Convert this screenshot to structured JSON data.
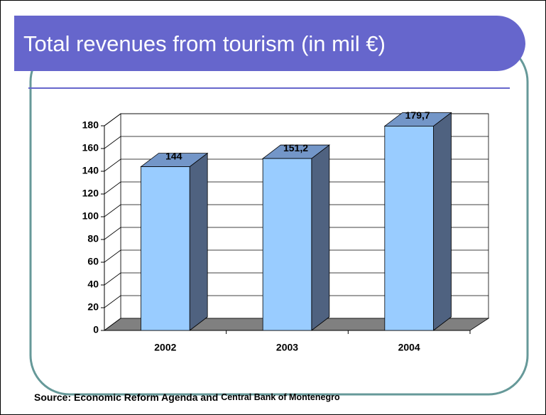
{
  "title": "Total revenues from tourism (in mil €)",
  "source": [
    "Source: Economic Reform Agenda and",
    "Central Bank of Montenegro"
  ],
  "chart_data": {
    "type": "bar3d",
    "categories": [
      "2002",
      "2003",
      "2004"
    ],
    "values": [
      144,
      151.2,
      179.7
    ],
    "value_labels": [
      "144",
      "151,2",
      "179,7"
    ],
    "color": "#99ccff",
    "ylim": [
      0,
      180
    ],
    "yticks": [
      0,
      20,
      40,
      60,
      80,
      100,
      120,
      140,
      160,
      180
    ],
    "grid": true
  }
}
